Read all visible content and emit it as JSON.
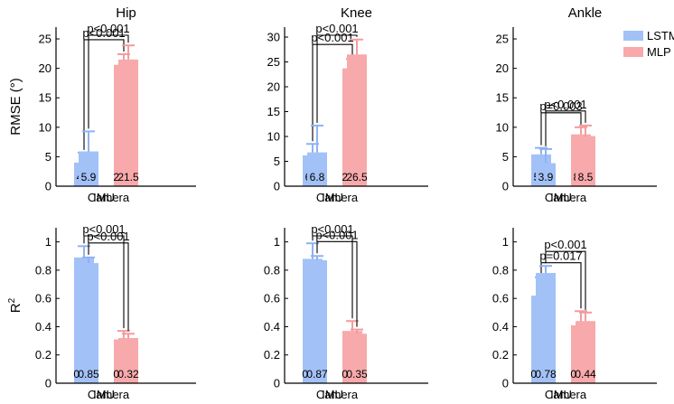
{
  "colors": {
    "lstm": "#a2c1f7",
    "lstm_err": "#8fb2f2",
    "mlp": "#f7a9ab",
    "mlp_err": "#f59b9d",
    "axis": "#000000"
  },
  "legend": {
    "entries": [
      "LSTM",
      "MLP"
    ],
    "placement": "top-right of Ankle RMSE panel"
  },
  "row_labels": {
    "rmse": "RMSE (°)",
    "r2_base": "R",
    "r2_sup": "2"
  },
  "chart_data": [
    {
      "type": "bar",
      "title": "Hip",
      "metric": "rmse",
      "categories": [
        "IMU",
        "Camera"
      ],
      "ylim": [
        0,
        27
      ],
      "yticks": [
        0,
        5,
        10,
        15,
        20,
        25
      ],
      "series": [
        {
          "name": "LSTM",
          "values": [
            4.0,
            5.9
          ],
          "errors": [
            1.7,
            3.4
          ],
          "labels": [
            "4.0",
            "5.9"
          ]
        },
        {
          "name": "MLP",
          "values": [
            20.6,
            21.5
          ],
          "errors": [
            1.8,
            2.4
          ],
          "labels": [
            "20.6",
            "21.5"
          ]
        }
      ],
      "annotations": [
        "p<0.001",
        "p<0.001"
      ]
    },
    {
      "type": "bar",
      "title": "Knee",
      "metric": "rmse",
      "categories": [
        "IMU",
        "Camera"
      ],
      "ylim": [
        0,
        32
      ],
      "yticks": [
        0,
        5,
        10,
        15,
        20,
        25,
        30
      ],
      "series": [
        {
          "name": "LSTM",
          "values": [
            6.2,
            6.8
          ],
          "errors": [
            2.3,
            5.4
          ],
          "labels": [
            "6.2",
            "6.8"
          ]
        },
        {
          "name": "MLP",
          "values": [
            23.7,
            26.5
          ],
          "errors": [
            1.9,
            3.0
          ],
          "labels": [
            "23.7",
            "26.5"
          ]
        }
      ],
      "annotations": [
        "p<0.001",
        "p<0.001"
      ]
    },
    {
      "type": "bar",
      "title": "Ankle",
      "metric": "rmse",
      "categories": [
        "IMU",
        "Camera"
      ],
      "ylim": [
        0,
        27
      ],
      "yticks": [
        0,
        5,
        10,
        15,
        20,
        25
      ],
      "series": [
        {
          "name": "LSTM",
          "values": [
            5.4,
            3.9
          ],
          "errors": [
            1.1,
            2.4
          ],
          "labels": [
            "5.4",
            "3.9"
          ]
        },
        {
          "name": "MLP",
          "values": [
            8.8,
            8.5
          ],
          "errors": [
            1.2,
            1.8
          ],
          "labels": [
            "8.8",
            "8.5"
          ]
        }
      ],
      "annotations": [
        "p=0.003",
        "p<0.001"
      ]
    },
    {
      "type": "bar",
      "title": "",
      "metric": "r2",
      "categories": [
        "IMU",
        "Camera"
      ],
      "ylim": [
        0,
        1.1
      ],
      "yticks": [
        0,
        0.2,
        0.4,
        0.6,
        0.8,
        1
      ],
      "series": [
        {
          "name": "LSTM",
          "values": [
            0.89,
            0.85
          ],
          "errors": [
            0.08,
            0.04
          ],
          "labels": [
            "0.89",
            "0.85"
          ]
        },
        {
          "name": "MLP",
          "values": [
            0.31,
            0.32
          ],
          "errors": [
            0.06,
            0.03
          ],
          "labels": [
            "0.31",
            "0.32"
          ]
        }
      ],
      "annotations": [
        "p<0.001",
        "p<0.001"
      ]
    },
    {
      "type": "bar",
      "title": "",
      "metric": "r2",
      "categories": [
        "IMU",
        "Camera"
      ],
      "ylim": [
        0,
        1.1
      ],
      "yticks": [
        0,
        0.2,
        0.4,
        0.6,
        0.8,
        1
      ],
      "series": [
        {
          "name": "LSTM",
          "values": [
            0.88,
            0.87
          ],
          "errors": [
            0.11,
            0.03
          ],
          "labels": [
            "0.88",
            "0.87"
          ]
        },
        {
          "name": "MLP",
          "values": [
            0.37,
            0.35
          ],
          "errors": [
            0.07,
            0.03
          ],
          "labels": [
            "0.37",
            "0.35"
          ]
        }
      ],
      "annotations": [
        "p<0.001",
        "p<0.001"
      ]
    },
    {
      "type": "bar",
      "title": "",
      "metric": "r2",
      "categories": [
        "IMU",
        "Camera"
      ],
      "ylim": [
        0,
        1.1
      ],
      "yticks": [
        0,
        0.2,
        0.4,
        0.6,
        0.8,
        1
      ],
      "series": [
        {
          "name": "LSTM",
          "values": [
            0.62,
            0.78
          ],
          "errors": [
            0.13,
            0.05
          ],
          "labels": [
            "0.62",
            "0.78"
          ]
        },
        {
          "name": "MLP",
          "values": [
            0.41,
            0.44
          ],
          "errors": [
            0.1,
            0.06
          ],
          "labels": [
            "0.41",
            "0.44"
          ]
        }
      ],
      "annotations": [
        "p=0.017",
        "p<0.001"
      ]
    }
  ]
}
